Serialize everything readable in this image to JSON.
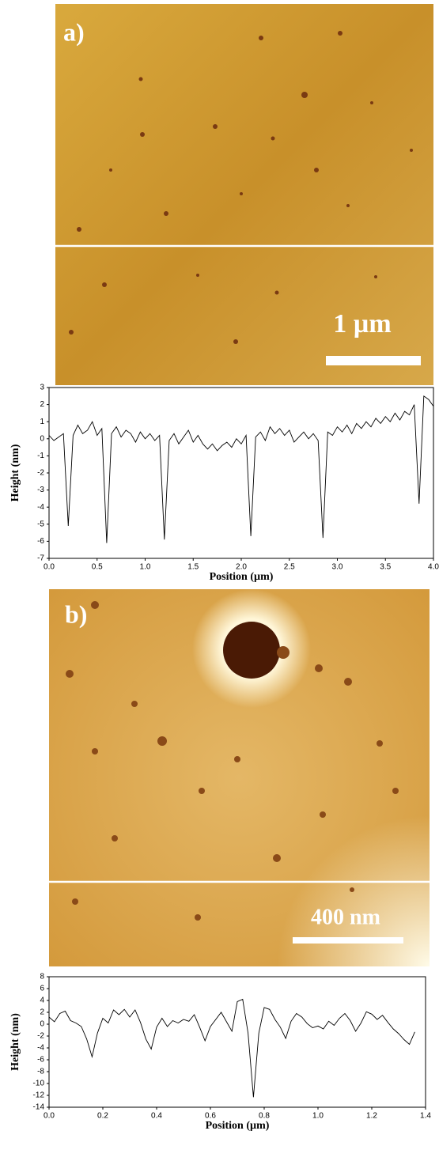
{
  "panels": [
    {
      "label": "a)",
      "scale_bar": "1 µm"
    },
    {
      "label": "b)",
      "scale_bar": "400 nm"
    }
  ],
  "chart_data": [
    {
      "type": "line",
      "x_label": "Position (µm)",
      "y_label": "Height (nm)",
      "color": "#000000",
      "x": [
        0.0,
        0.05,
        0.1,
        0.15,
        0.2,
        0.25,
        0.3,
        0.35,
        0.4,
        0.45,
        0.5,
        0.55,
        0.6,
        0.65,
        0.7,
        0.75,
        0.8,
        0.85,
        0.9,
        0.95,
        1.0,
        1.05,
        1.1,
        1.15,
        1.2,
        1.25,
        1.3,
        1.35,
        1.4,
        1.45,
        1.5,
        1.55,
        1.6,
        1.65,
        1.7,
        1.75,
        1.8,
        1.85,
        1.9,
        1.95,
        2.0,
        2.05,
        2.1,
        2.15,
        2.2,
        2.25,
        2.3,
        2.35,
        2.4,
        2.45,
        2.5,
        2.55,
        2.6,
        2.65,
        2.7,
        2.75,
        2.8,
        2.85,
        2.9,
        2.95,
        3.0,
        3.05,
        3.1,
        3.15,
        3.2,
        3.25,
        3.3,
        3.35,
        3.4,
        3.45,
        3.5,
        3.55,
        3.6,
        3.65,
        3.7,
        3.75,
        3.8,
        3.85,
        3.9,
        3.95,
        4.0
      ],
      "values": [
        0.2,
        -0.1,
        0.1,
        0.3,
        -5.1,
        0.2,
        0.8,
        0.3,
        0.5,
        1.0,
        0.2,
        0.6,
        -6.1,
        0.3,
        0.7,
        0.1,
        0.5,
        0.3,
        -0.2,
        0.4,
        0.0,
        0.3,
        -0.1,
        0.2,
        -5.9,
        -0.1,
        0.3,
        -0.3,
        0.1,
        0.5,
        -0.2,
        0.2,
        -0.3,
        -0.6,
        -0.3,
        -0.7,
        -0.4,
        -0.2,
        -0.5,
        0.0,
        -0.3,
        0.2,
        -5.7,
        0.1,
        0.4,
        -0.1,
        0.7,
        0.3,
        0.6,
        0.2,
        0.5,
        -0.2,
        0.1,
        0.4,
        0.0,
        0.3,
        -0.1,
        -5.8,
        0.4,
        0.2,
        0.7,
        0.4,
        0.8,
        0.3,
        0.9,
        0.6,
        1.0,
        0.7,
        1.2,
        0.9,
        1.3,
        1.0,
        1.5,
        1.1,
        1.6,
        1.4,
        2.0,
        -3.8,
        2.5,
        2.3,
        1.9
      ],
      "xlim": [
        0,
        4
      ],
      "ylim": [
        -7,
        3
      ],
      "xticks": [
        {
          "value": 0,
          "label": "0.0"
        },
        0.5,
        {
          "value": 1,
          "label": "1.0"
        },
        1.5,
        {
          "value": 2,
          "label": "2.0"
        },
        2.5,
        {
          "value": 3,
          "label": "3.0"
        },
        3.5,
        {
          "value": 4,
          "label": "4.0"
        }
      ],
      "yticks": [
        3,
        2,
        1,
        0,
        -1,
        -2,
        -3,
        -4,
        -5,
        -6,
        -7
      ]
    },
    {
      "type": "line",
      "x_label": "Position (µm)",
      "y_label": "Height (nm)",
      "color": "#000000",
      "x": [
        0.0,
        0.02,
        0.04,
        0.06,
        0.08,
        0.1,
        0.12,
        0.14,
        0.16,
        0.18,
        0.2,
        0.22,
        0.24,
        0.26,
        0.28,
        0.3,
        0.32,
        0.34,
        0.36,
        0.38,
        0.4,
        0.42,
        0.44,
        0.46,
        0.48,
        0.5,
        0.52,
        0.54,
        0.56,
        0.58,
        0.6,
        0.62,
        0.64,
        0.66,
        0.68,
        0.7,
        0.72,
        0.74,
        0.76,
        0.78,
        0.8,
        0.82,
        0.84,
        0.86,
        0.88,
        0.9,
        0.92,
        0.94,
        0.96,
        0.98,
        1.0,
        1.02,
        1.04,
        1.06,
        1.08,
        1.1,
        1.12,
        1.14,
        1.16,
        1.18,
        1.2,
        1.22,
        1.24,
        1.26,
        1.28,
        1.3,
        1.32,
        1.34,
        1.36
      ],
      "values": [
        1.2,
        0.4,
        1.8,
        2.2,
        0.6,
        0.2,
        -0.4,
        -2.5,
        -5.5,
        -1.5,
        1.0,
        0.2,
        2.4,
        1.6,
        2.5,
        1.2,
        2.4,
        0.3,
        -2.5,
        -4.2,
        -0.5,
        1.0,
        -0.4,
        0.6,
        0.2,
        0.8,
        0.5,
        1.6,
        -0.5,
        -2.8,
        -0.4,
        0.8,
        2.0,
        0.4,
        -1.2,
        3.8,
        4.2,
        -1.5,
        -12.3,
        -1.5,
        2.8,
        2.5,
        0.8,
        -0.5,
        -2.4,
        0.5,
        1.8,
        1.2,
        0.1,
        -0.6,
        -0.3,
        -0.8,
        0.5,
        -0.2,
        1.0,
        1.8,
        0.6,
        -1.2,
        0.2,
        2.1,
        1.7,
        0.8,
        1.5,
        0.3,
        -0.8,
        -1.6,
        -2.6,
        -3.4,
        -1.3
      ],
      "xlim": [
        0,
        1.4
      ],
      "ylim": [
        -14,
        8
      ],
      "xticks": [
        {
          "value": 0,
          "label": "0.0"
        },
        0.2,
        0.4,
        0.6,
        0.8,
        {
          "value": 1,
          "label": "1.0"
        },
        1.2,
        1.4
      ],
      "yticks": [
        8,
        6,
        4,
        2,
        0,
        -2,
        -4,
        -6,
        -8,
        -10,
        -12,
        -14
      ]
    }
  ]
}
